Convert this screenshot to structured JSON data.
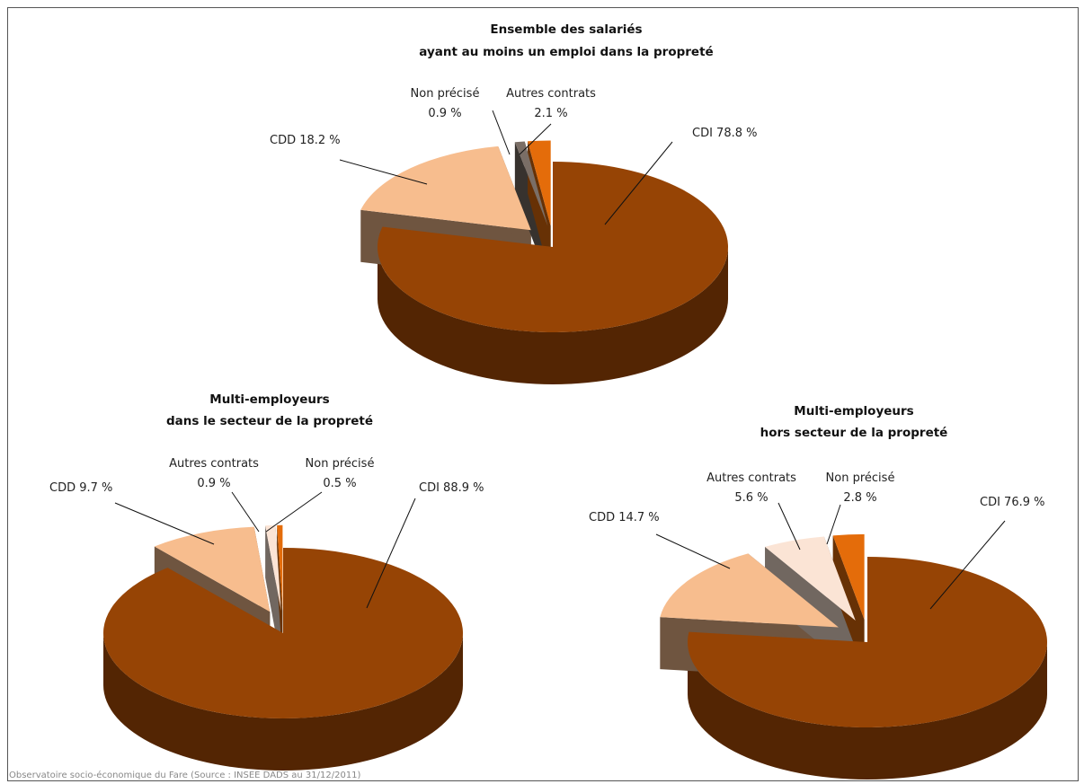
{
  "chart_data": [
    {
      "type": "pie",
      "title": [
        "Ensemble des salariés",
        "ayant au moins un emploi dans la propreté"
      ],
      "slices": [
        {
          "name": "CDI",
          "value": 78.8,
          "label": "CDI 78.8 %",
          "color": "#964405"
        },
        {
          "name": "CDD",
          "value": 18.2,
          "label": "CDD 18.2 %",
          "color": "#f7bd8e"
        },
        {
          "name": "Non précisé",
          "value": 0.9,
          "label": [
            "Non précisé",
            "0.9 %"
          ],
          "color": "#7a6e66"
        },
        {
          "name": "Autres contrats",
          "value": 2.1,
          "label": [
            "Autres contrats",
            "2.1 %"
          ],
          "color": "#e46c0a"
        }
      ]
    },
    {
      "type": "pie",
      "title": [
        "Multi-employeurs",
        "dans le secteur de la propreté"
      ],
      "slices": [
        {
          "name": "CDI",
          "value": 88.9,
          "label": "CDI 88.9 %",
          "color": "#964405"
        },
        {
          "name": "CDD",
          "value": 9.7,
          "label": "CDD 9.7 %",
          "color": "#f7bd8e"
        },
        {
          "name": "Autres contrats",
          "value": 0.9,
          "label": [
            "Autres contrats",
            "0.9 %"
          ],
          "color": "#fbe4d5"
        },
        {
          "name": "Non précisé",
          "value": 0.5,
          "label": [
            "Non précisé",
            "0.5 %"
          ],
          "color": "#e46c0a"
        }
      ]
    },
    {
      "type": "pie",
      "title": [
        "Multi-employeurs",
        "hors secteur de la propreté"
      ],
      "slices": [
        {
          "name": "CDI",
          "value": 76.9,
          "label": "CDI 76.9 %",
          "color": "#964405"
        },
        {
          "name": "CDD",
          "value": 14.7,
          "label": "CDD 14.7 %",
          "color": "#f7bd8e"
        },
        {
          "name": "Autres contrats",
          "value": 5.6,
          "label": [
            "Autres contrats",
            "5.6 %"
          ],
          "color": "#fbe4d5"
        },
        {
          "name": "Non précisé",
          "value": 2.8,
          "label": [
            "Non précisé",
            "2.8 %"
          ],
          "color": "#e46c0a"
        }
      ]
    }
  ],
  "source": "Observatoire socio-économique du Fare (Source : INSEE DADS au 31/12/2011)"
}
